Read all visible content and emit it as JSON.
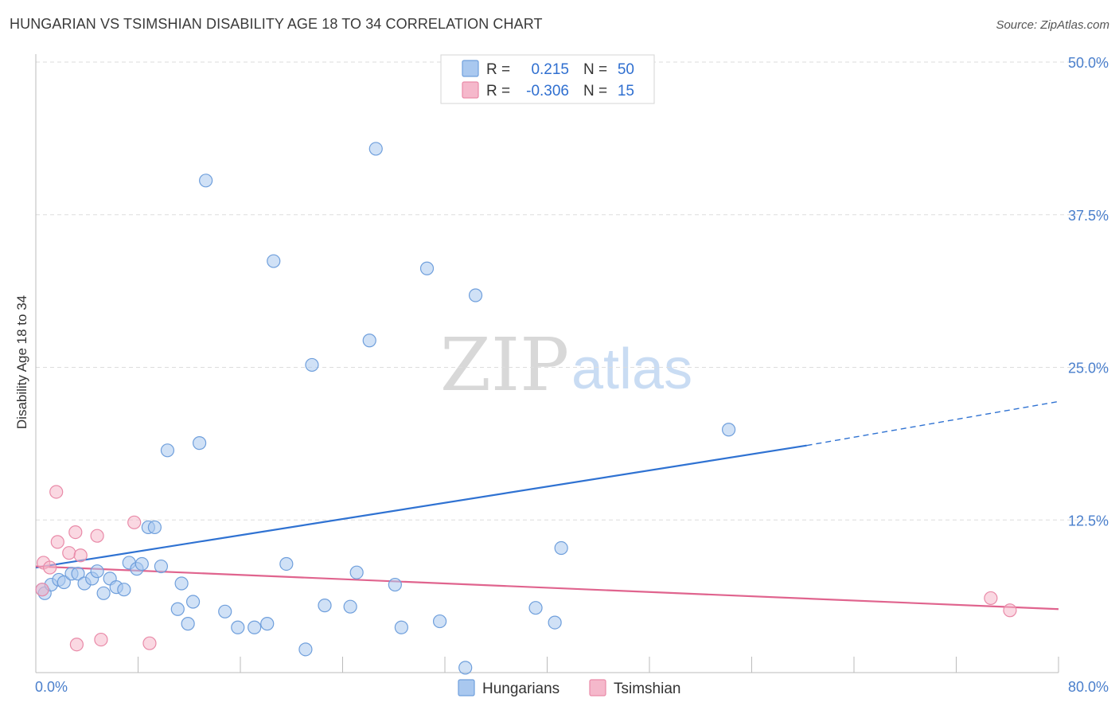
{
  "title": "HUNGARIAN VS TSIMSHIAN DISABILITY AGE 18 TO 34 CORRELATION CHART",
  "source": "Source: ZipAtlas.com",
  "watermark": {
    "zip": "ZIP",
    "atlas": "atlas"
  },
  "colors": {
    "blue_fill": "#a9c8ef",
    "blue_stroke": "#6f9fdc",
    "blue_line": "#2f72d2",
    "pink_fill": "#f5b8cb",
    "pink_stroke": "#e98aa8",
    "pink_line": "#e0648e",
    "tick_text": "#4a7fcc",
    "grid": "#dddddd"
  },
  "legend": {
    "rows": [
      {
        "r_label": "R =",
        "r_value": "0.215",
        "n_label": "N =",
        "n_value": "50",
        "series": "blue"
      },
      {
        "r_label": "R =",
        "r_value": "-0.306",
        "n_label": "N =",
        "n_value": "15",
        "series": "pink"
      }
    ]
  },
  "bottom_legend": [
    {
      "label": "Hungarians",
      "series": "blue"
    },
    {
      "label": "Tsimshian",
      "series": "pink"
    }
  ],
  "chart_data": {
    "type": "scatter",
    "title": "HUNGARIAN VS TSIMSHIAN DISABILITY AGE 18 TO 34 CORRELATION CHART",
    "xlabel": "",
    "ylabel": "Disability Age 18 to 34",
    "xlim": [
      0,
      80
    ],
    "ylim": [
      0,
      50
    ],
    "x_tick_labels": [
      "0.0%",
      "80.0%"
    ],
    "y_ticks": [
      12.5,
      25.0,
      37.5,
      50.0
    ],
    "y_tick_labels": [
      "12.5%",
      "25.0%",
      "37.5%",
      "50.0%"
    ],
    "grid": true,
    "series": [
      {
        "name": "Hungarians",
        "r": 0.215,
        "n": 50,
        "points": [
          [
            0.5,
            6.8
          ],
          [
            0.7,
            6.5
          ],
          [
            1.2,
            7.2
          ],
          [
            1.8,
            7.6
          ],
          [
            2.2,
            7.4
          ],
          [
            2.8,
            8.1
          ],
          [
            3.3,
            8.1
          ],
          [
            3.8,
            7.3
          ],
          [
            4.4,
            7.7
          ],
          [
            4.8,
            8.3
          ],
          [
            5.3,
            6.5
          ],
          [
            5.8,
            7.7
          ],
          [
            6.3,
            7.0
          ],
          [
            6.9,
            6.8
          ],
          [
            7.3,
            9.0
          ],
          [
            7.9,
            8.5
          ],
          [
            8.3,
            8.9
          ],
          [
            8.8,
            11.9
          ],
          [
            9.3,
            11.9
          ],
          [
            9.8,
            8.7
          ],
          [
            10.3,
            18.2
          ],
          [
            11.1,
            5.2
          ],
          [
            11.4,
            7.3
          ],
          [
            11.9,
            4.0
          ],
          [
            12.3,
            5.8
          ],
          [
            12.8,
            18.8
          ],
          [
            13.3,
            40.3
          ],
          [
            14.8,
            5.0
          ],
          [
            15.8,
            3.7
          ],
          [
            17.1,
            3.7
          ],
          [
            18.1,
            4.0
          ],
          [
            18.6,
            33.7
          ],
          [
            19.6,
            8.9
          ],
          [
            21.1,
            1.9
          ],
          [
            21.6,
            25.2
          ],
          [
            22.6,
            5.5
          ],
          [
            24.6,
            5.4
          ],
          [
            25.1,
            8.2
          ],
          [
            26.1,
            27.2
          ],
          [
            26.6,
            42.9
          ],
          [
            28.1,
            7.2
          ],
          [
            28.6,
            3.7
          ],
          [
            30.6,
            33.1
          ],
          [
            31.6,
            4.2
          ],
          [
            33.6,
            0.4
          ],
          [
            34.4,
            30.9
          ],
          [
            39.1,
            5.3
          ],
          [
            40.6,
            4.1
          ],
          [
            41.1,
            10.2
          ],
          [
            54.2,
            19.9
          ]
        ],
        "trend": {
          "x_start": 0,
          "y_start": 8.6,
          "x_solid_end": 60.3,
          "y_solid_end": 18.6,
          "x_end": 80,
          "y_end": 22.2
        }
      },
      {
        "name": "Tsimshian",
        "r": -0.306,
        "n": 15,
        "points": [
          [
            0.5,
            6.8
          ],
          [
            0.6,
            9.0
          ],
          [
            1.1,
            8.6
          ],
          [
            1.6,
            14.8
          ],
          [
            1.7,
            10.7
          ],
          [
            2.6,
            9.8
          ],
          [
            3.1,
            11.5
          ],
          [
            3.2,
            2.3
          ],
          [
            3.5,
            9.6
          ],
          [
            4.8,
            11.2
          ],
          [
            5.1,
            2.7
          ],
          [
            7.7,
            12.3
          ],
          [
            8.9,
            2.4
          ],
          [
            74.7,
            6.1
          ],
          [
            76.2,
            5.1
          ]
        ],
        "trend": {
          "x_start": 0,
          "y_start": 8.7,
          "x_end": 80,
          "y_end": 5.2
        }
      }
    ]
  }
}
